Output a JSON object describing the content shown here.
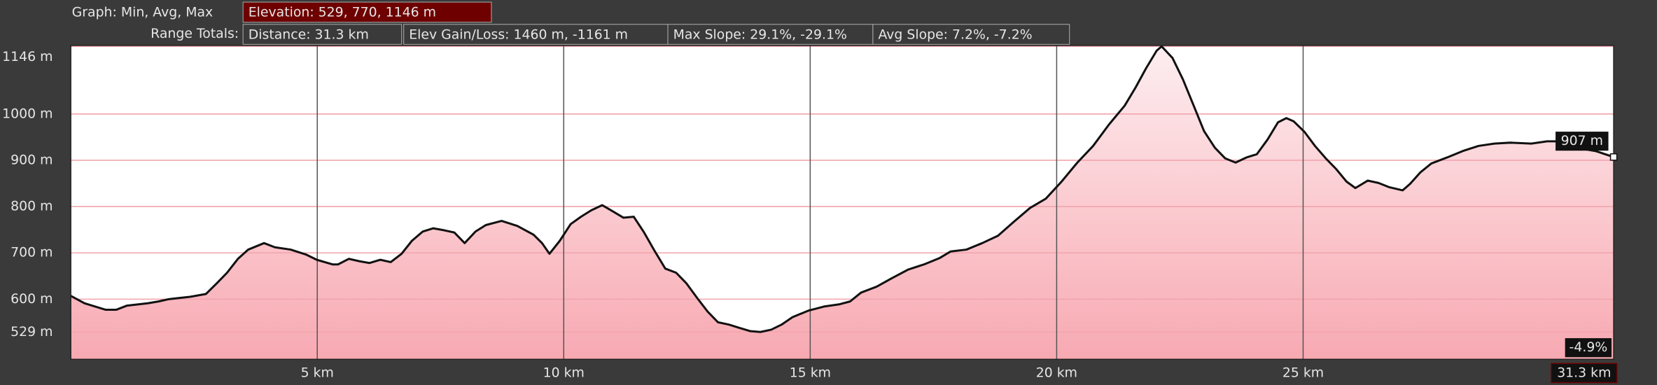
{
  "header": {
    "graph_label": "Graph: Min, Avg, Max",
    "elevation": "Elevation: 529, 770, 1146 m",
    "range_label": "Range Totals:",
    "range_boxes": [
      "Distance: 31.3 km",
      "Elev Gain/Loss: 1460 m, -1161 m",
      "Max Slope: 29.1%, -29.1%",
      "Avg Slope: 7.2%, -7.2%"
    ]
  },
  "chart_data": {
    "type": "area",
    "line_color": "#111111",
    "fill_top": "#fdeef0",
    "fill_bottom": "#f8a9b2",
    "grid": true,
    "xlim": [
      0,
      31.3
    ],
    "ylim": [
      470,
      1148
    ],
    "xticks": [
      {
        "value": 5,
        "label": "5 km"
      },
      {
        "value": 10,
        "label": "10 km"
      },
      {
        "value": 15,
        "label": "15 km"
      },
      {
        "value": 20,
        "label": "20 km"
      },
      {
        "value": 25,
        "label": "25 km"
      }
    ],
    "yticks": [
      {
        "value": 529,
        "label": "529 m"
      },
      {
        "value": 600,
        "label": "600 m"
      },
      {
        "value": 700,
        "label": "700 m"
      },
      {
        "value": 800,
        "label": "800 m"
      },
      {
        "value": 900,
        "label": "900 m"
      },
      {
        "value": 1000,
        "label": "1000 m"
      },
      {
        "value": 1146,
        "label": "1146 m"
      }
    ],
    "x": [
      0,
      0.28,
      0.71,
      0.92,
      1.14,
      1.56,
      1.78,
      1.99,
      2.42,
      2.74,
      2.96,
      3.17,
      3.39,
      3.6,
      3.92,
      4.14,
      4.46,
      4.78,
      4.99,
      5.31,
      5.42,
      5.64,
      5.85,
      6.06,
      6.28,
      6.49,
      6.71,
      6.92,
      7.14,
      7.35,
      7.56,
      7.78,
      7.99,
      8.21,
      8.42,
      8.74,
      9.06,
      9.39,
      9.56,
      9.71,
      9.92,
      10.14,
      10.35,
      10.56,
      10.78,
      10.99,
      11.21,
      11.42,
      11.63,
      11.85,
      12.06,
      12.28,
      12.49,
      12.71,
      12.92,
      13.13,
      13.35,
      13.56,
      13.78,
      13.99,
      14.21,
      14.42,
      14.64,
      14.96,
      15.28,
      15.6,
      15.81,
      16.03,
      16.35,
      16.67,
      16.99,
      17.31,
      17.63,
      17.85,
      18.17,
      18.49,
      18.81,
      19.13,
      19.46,
      19.78,
      20.1,
      20.42,
      20.74,
      21.06,
      21.38,
      21.6,
      21.81,
      22.03,
      22.13,
      22.35,
      22.56,
      22.78,
      22.99,
      23.21,
      23.42,
      23.63,
      23.85,
      24.06,
      24.28,
      24.49,
      24.66,
      24.81,
      25.03,
      25.24,
      25.46,
      25.67,
      25.88,
      26.06,
      26.31,
      26.53,
      26.74,
      27.02,
      27.17,
      27.38,
      27.6,
      27.92,
      28.24,
      28.56,
      28.88,
      29.2,
      29.63,
      29.95,
      30.17,
      30.38,
      30.7,
      30.93,
      31.3
    ],
    "values": [
      607,
      591,
      577,
      577,
      586,
      591,
      595,
      600,
      605,
      611,
      634,
      657,
      687,
      707,
      721,
      712,
      707,
      696,
      685,
      675,
      675,
      687,
      682,
      678,
      685,
      680,
      698,
      726,
      746,
      753,
      749,
      744,
      721,
      746,
      760,
      769,
      758,
      739,
      721,
      698,
      726,
      762,
      778,
      792,
      803,
      790,
      776,
      778,
      744,
      703,
      666,
      657,
      634,
      602,
      573,
      550,
      545,
      538,
      531,
      529,
      534,
      545,
      561,
      575,
      584,
      589,
      595,
      614,
      627,
      646,
      664,
      675,
      689,
      703,
      707,
      721,
      737,
      767,
      797,
      817,
      854,
      895,
      931,
      977,
      1018,
      1057,
      1098,
      1137,
      1146,
      1121,
      1075,
      1018,
      963,
      927,
      904,
      895,
      906,
      913,
      945,
      982,
      991,
      984,
      961,
      931,
      904,
      881,
      854,
      840,
      856,
      851,
      842,
      835,
      849,
      874,
      893,
      906,
      920,
      931,
      936,
      938,
      936,
      941,
      941,
      931,
      924,
      920,
      907
    ],
    "cursor": {
      "x": 31.3,
      "x_label": "31.3 km",
      "y": 907,
      "y_label": "907 m",
      "slope_label": "-4.9%"
    }
  }
}
